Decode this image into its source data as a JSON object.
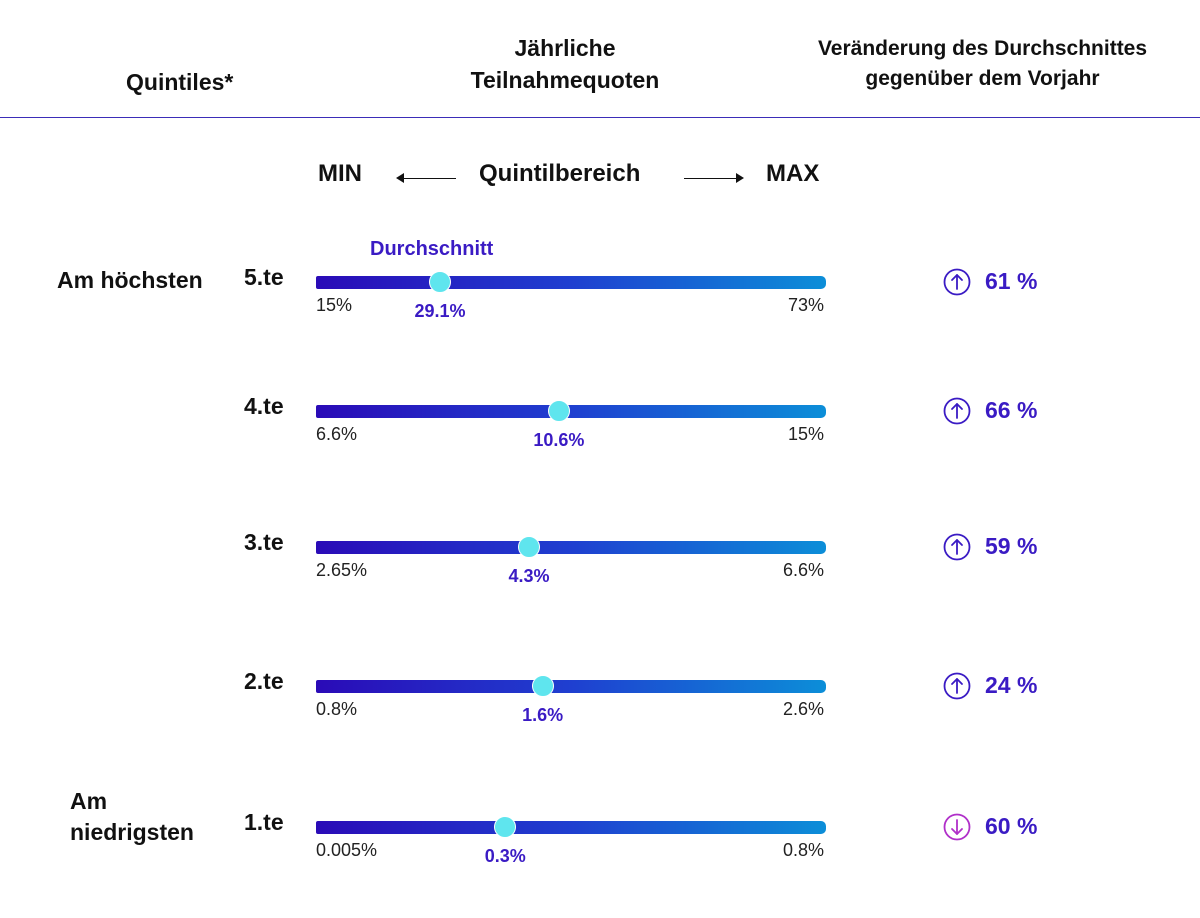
{
  "header": {
    "quintiles": "Quintiles*",
    "rates_line1": "Jährliche",
    "rates_line2": "Teilnahmequoten",
    "change_line1": "Veränderung des Durchschnittes",
    "change_line2": "gegenüber dem Vorjahr"
  },
  "axis": {
    "min": "MIN",
    "range": "Quintilbereich",
    "max": "MAX"
  },
  "side": {
    "top": "Am höchsten",
    "bottom_line1": "Am",
    "bottom_line2": "niedrigsten"
  },
  "avg_label": "Durchschnitt",
  "colors": {
    "accent": "#3a1bc4",
    "marker": "#5fe5ee",
    "up": "#3a1bc4",
    "down": "#b02fc9"
  },
  "chart_data": {
    "type": "range_bar",
    "rows": [
      {
        "label": "5.te",
        "min": 15,
        "avg": 29.1,
        "max": 73,
        "min_text": "15%",
        "avg_text": "29.1%",
        "max_text": "73%",
        "change": 61,
        "change_text": "61 %",
        "direction": "up"
      },
      {
        "label": "4.te",
        "min": 6.6,
        "avg": 10.6,
        "max": 15,
        "min_text": "6.6%",
        "avg_text": "10.6%",
        "max_text": "15%",
        "change": 66,
        "change_text": "66 %",
        "direction": "up"
      },
      {
        "label": "3.te",
        "min": 2.65,
        "avg": 4.3,
        "max": 6.6,
        "min_text": "2.65%",
        "avg_text": "4.3%",
        "max_text": "6.6%",
        "change": 59,
        "change_text": "59 %",
        "direction": "up"
      },
      {
        "label": "2.te",
        "min": 0.8,
        "avg": 1.6,
        "max": 2.6,
        "min_text": "0.8%",
        "avg_text": "1.6%",
        "max_text": "2.6%",
        "change": 24,
        "change_text": "24 %",
        "direction": "up"
      },
      {
        "label": "1.te",
        "min": 0.005,
        "avg": 0.3,
        "max": 0.8,
        "min_text": "0.005%",
        "avg_text": "0.3%",
        "max_text": "0.8%",
        "change": -60,
        "change_text": "60 %",
        "direction": "down"
      }
    ]
  }
}
